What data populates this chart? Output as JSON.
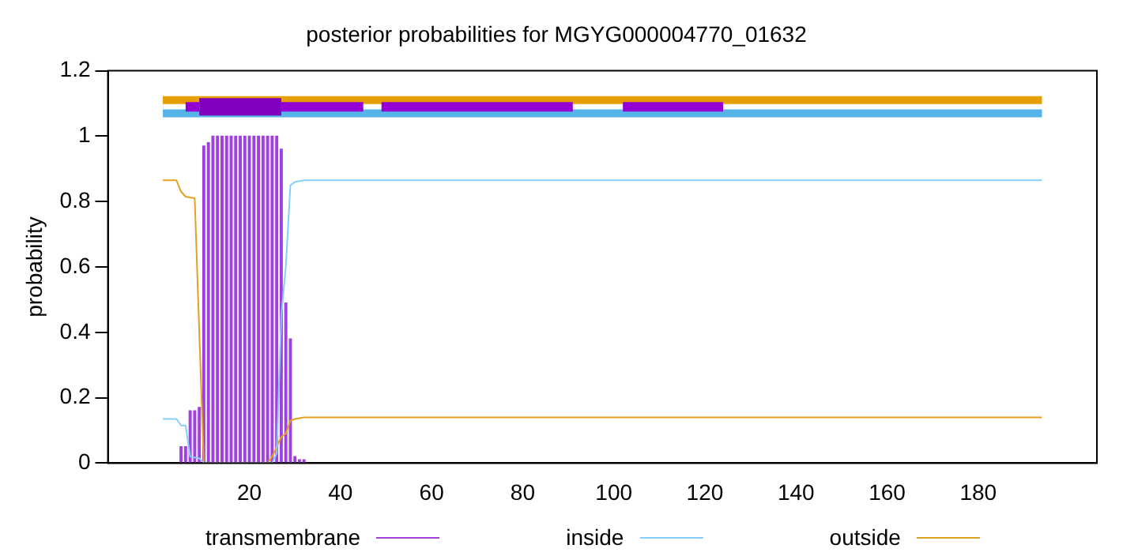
{
  "chart_data": {
    "type": "line",
    "title": "posterior probabilities for MGYG000004770_01632",
    "ylabel": "probability",
    "xlim": [
      1,
      194
    ],
    "xticks": [
      20,
      40,
      60,
      80,
      100,
      120,
      140,
      160,
      180
    ],
    "ylim": [
      0,
      1.2
    ],
    "yticks": [
      0,
      0.2,
      0.4,
      0.6,
      0.8,
      1,
      1.2
    ],
    "grid": false,
    "legend": "bottom",
    "marker": "none",
    "series": [
      {
        "name": "transmembrane",
        "type": "bar",
        "color": "#a040e0",
        "x": [
          5,
          6,
          7,
          8,
          9,
          10,
          11,
          12,
          13,
          14,
          15,
          16,
          17,
          18,
          19,
          20,
          21,
          22,
          23,
          24,
          25,
          26,
          27,
          28,
          29,
          30,
          31,
          32
        ],
        "values": [
          0.05,
          0.05,
          0.16,
          0.16,
          0.17,
          0.97,
          0.98,
          1,
          1,
          1,
          1,
          1,
          1,
          1,
          1,
          1,
          1,
          1,
          1,
          1,
          1,
          1,
          0.96,
          0.49,
          0.38,
          0.02,
          0.01,
          0.01
        ]
      },
      {
        "name": "inside",
        "color": "#87cefa",
        "x": [
          1,
          4,
          5,
          6,
          7,
          9,
          10,
          25,
          26,
          27,
          28,
          29,
          30,
          32,
          194
        ],
        "values": [
          0.135,
          0.135,
          0.115,
          0.115,
          0.02,
          0.015,
          0,
          0,
          0.03,
          0.45,
          0.6,
          0.85,
          0.86,
          0.865,
          0.865
        ]
      },
      {
        "name": "outside",
        "color": "#e6a020",
        "x": [
          1,
          4,
          5,
          6,
          8,
          9,
          10,
          24,
          25,
          26,
          27,
          28,
          29,
          30,
          32,
          194
        ],
        "values": [
          0.865,
          0.865,
          0.83,
          0.815,
          0.81,
          0.4,
          0,
          0,
          0.02,
          0.05,
          0.08,
          0.09,
          0.13,
          0.135,
          0.14,
          0.14
        ]
      },
      {
        "color": "#e69f00",
        "x": [
          1,
          194
        ],
        "values": [
          1.11,
          1.11
        ]
      },
      {
        "color": "#56b4e9",
        "x": [
          1,
          194
        ],
        "values": [
          1.07,
          1.07
        ]
      },
      {
        "color": "#9400d3",
        "x": [
          6,
          9,
          18,
          27,
          45,
          47,
          49,
          91,
          96,
          102,
          124
        ],
        "values": [
          1.09,
          1.09,
          null,
          1.09,
          1.09,
          null,
          1.09,
          1.09,
          null,
          1.09,
          1.09
        ]
      },
      {
        "color": "#8000c0",
        "x": [
          9,
          27
        ],
        "values": [
          1.09,
          1.09
        ]
      }
    ]
  }
}
